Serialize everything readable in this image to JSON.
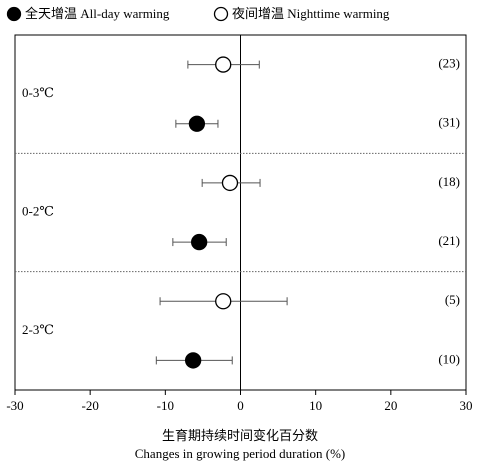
{
  "chart_data": {
    "type": "forest",
    "xlabel_cn": "生育期持续时间变化百分数",
    "xlabel": "Changes in growing period duration (%)",
    "categories": [
      "0-3℃",
      "0-2℃",
      "2-3℃"
    ],
    "series": [
      {
        "name": "全天增温 All-day warming",
        "color": "#000000",
        "filled": true,
        "values": [
          -5.8,
          -5.5,
          -6.3
        ],
        "lower": [
          -8.6,
          -9.0,
          -11.2
        ],
        "upper": [
          -3.0,
          -1.9,
          -1.1
        ],
        "n_labels": [
          "(31)",
          "(21)",
          "(10)"
        ]
      },
      {
        "name": "夜间增温 Nighttime warming",
        "color": "#000000",
        "filled": false,
        "values": [
          -2.3,
          -1.4,
          -2.3
        ],
        "lower": [
          -7.0,
          -5.1,
          -10.7
        ],
        "upper": [
          2.5,
          2.6,
          6.2
        ],
        "n_labels": [
          "(23)",
          "(18)",
          "(5)"
        ]
      }
    ],
    "xlim": [
      -30,
      30
    ],
    "xticks": [
      -30,
      -20,
      -10,
      0,
      10,
      20,
      30
    ]
  }
}
